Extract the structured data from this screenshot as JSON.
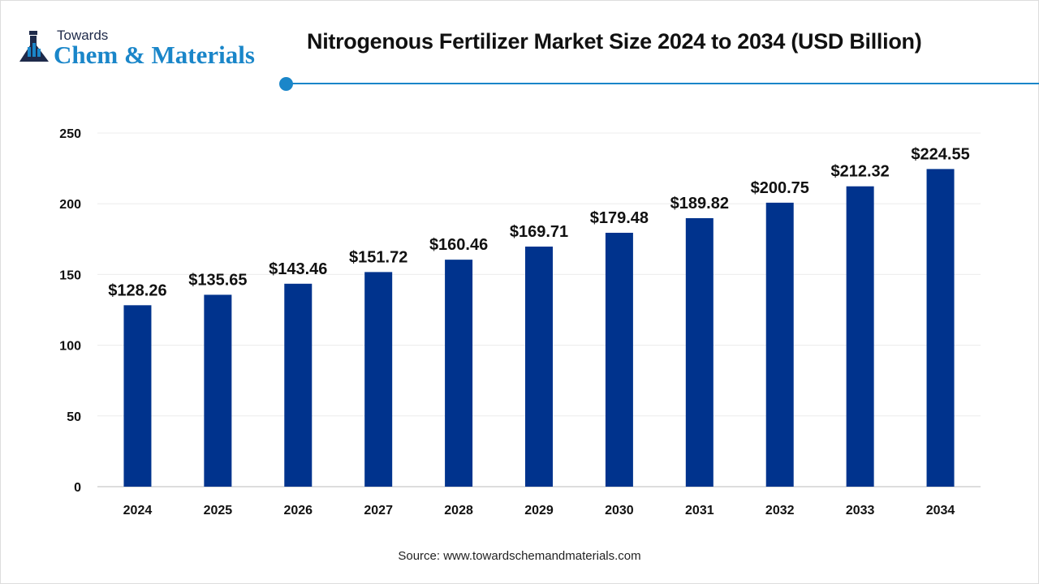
{
  "logo": {
    "line1": "Towards",
    "line2": "Chem & Materials"
  },
  "colors": {
    "bar": "#00338d",
    "accent": "#1a86c9"
  },
  "source": "Source: www.towardschemandmaterials.com",
  "chart_data": {
    "type": "bar",
    "title": "Nitrogenous Fertilizer Market Size 2024 to 2034 (USD Billion)",
    "categories": [
      "2024",
      "2025",
      "2026",
      "2027",
      "2028",
      "2029",
      "2030",
      "2031",
      "2032",
      "2033",
      "2034"
    ],
    "values": [
      128.26,
      135.65,
      143.46,
      151.72,
      160.46,
      169.71,
      179.48,
      189.82,
      200.75,
      212.32,
      224.55
    ],
    "labels": [
      "$128.26",
      "$135.65",
      "$143.46",
      "$151.72",
      "$160.46",
      "$169.71",
      "$179.48",
      "$189.82",
      "$200.75",
      "$212.32",
      "$224.55"
    ],
    "ylim": [
      0,
      250
    ],
    "yticks": [
      0,
      50,
      100,
      150,
      200,
      250
    ],
    "grid": true,
    "xlabel": "",
    "ylabel": ""
  }
}
